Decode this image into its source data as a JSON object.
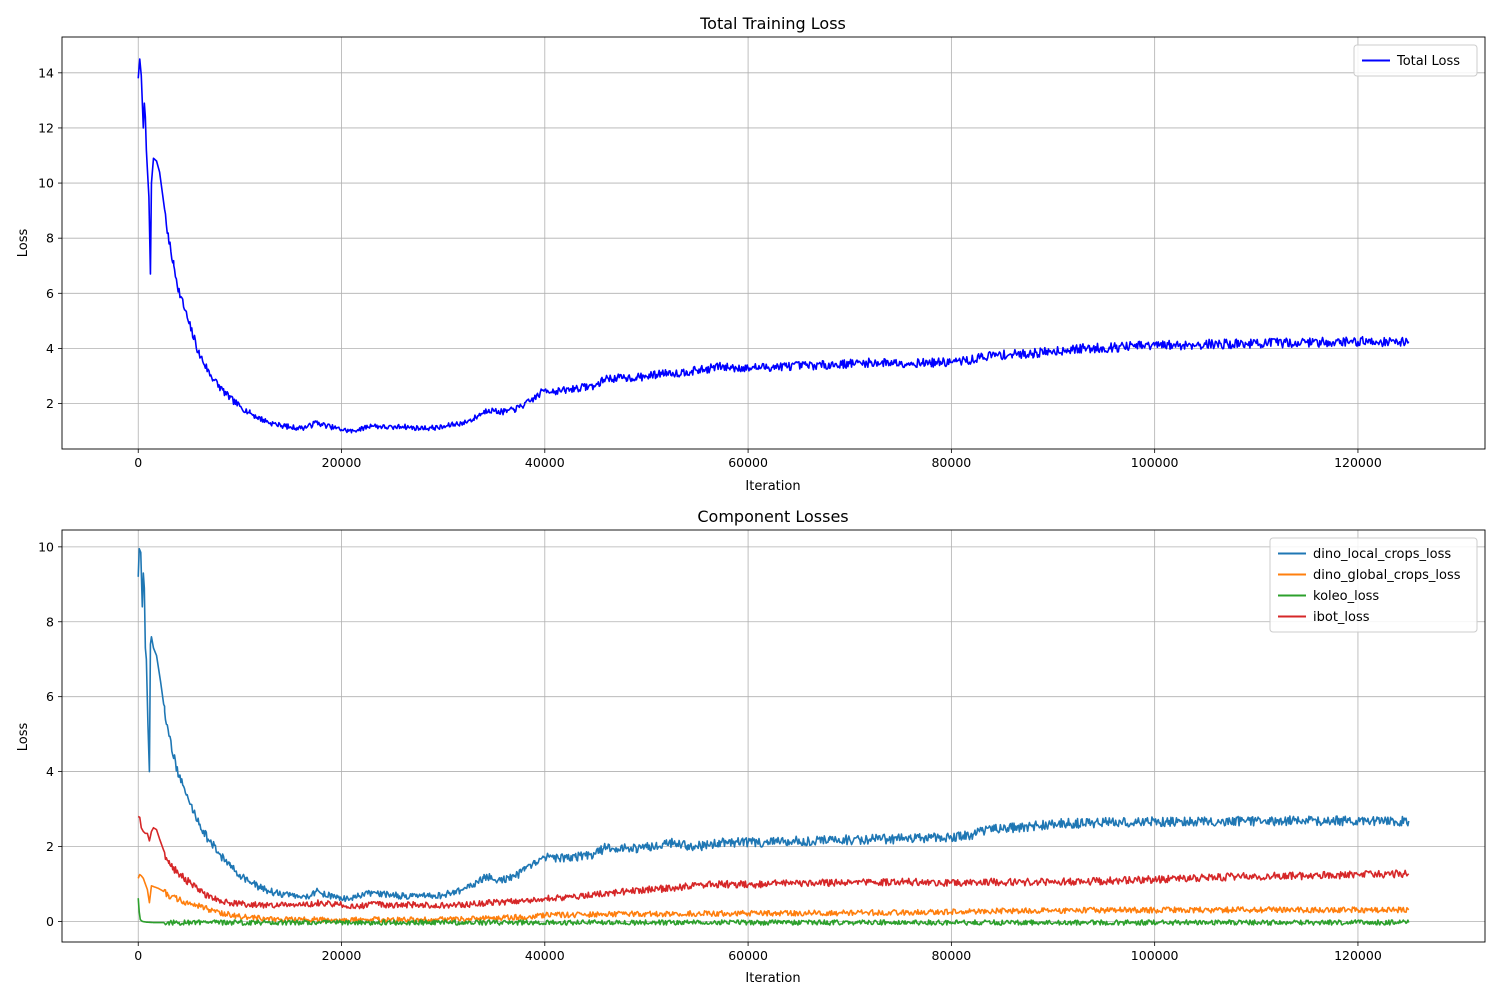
{
  "chart_data": [
    {
      "type": "line",
      "title": "Total Training Loss",
      "xlabel": "Iteration",
      "ylabel": "Loss",
      "xlim": [
        -7500,
        132500
      ],
      "ylim": [
        0.35,
        15.3
      ],
      "xticks": [
        0,
        20000,
        40000,
        60000,
        80000,
        100000,
        120000
      ],
      "xtick_labels": [
        "0",
        "20000",
        "40000",
        "60000",
        "80000",
        "100000",
        "120000"
      ],
      "yticks": [
        2,
        4,
        6,
        8,
        10,
        12,
        14
      ],
      "ytick_labels": [
        "2",
        "4",
        "6",
        "8",
        "10",
        "12",
        "14"
      ],
      "grid": true,
      "legend_position": "top-right",
      "noise_fraction": 0.012,
      "series": [
        {
          "name": "Total Loss",
          "color": "#0000ff",
          "x": [
            0,
            150,
            300,
            500,
            600,
            700,
            800,
            900,
            1050,
            1200,
            1300,
            1500,
            1800,
            2100,
            2500,
            3000,
            3500,
            4000,
            5000,
            6000,
            7000,
            8000,
            9000,
            10000,
            11000,
            12000,
            13000,
            14000,
            15000,
            16000,
            17000,
            17500,
            18000,
            19000,
            20000,
            21000,
            22000,
            23000,
            24000,
            25000,
            26000,
            27000,
            28000,
            29000,
            30000,
            31000,
            32000,
            33000,
            34000,
            34500,
            35000,
            36000,
            37000,
            38000,
            39000,
            40000,
            41000,
            42000,
            43000,
            44000,
            45000,
            46000,
            47000,
            48000,
            49000,
            50000,
            51000,
            52000,
            53000,
            54000,
            55000,
            56000,
            57000,
            58000,
            60000,
            62000,
            64000,
            66000,
            68000,
            70000,
            72000,
            74000,
            76000,
            78000,
            80000,
            82000,
            83000,
            84000,
            86000,
            88000,
            90000,
            92000,
            95000,
            98000,
            100000,
            105000,
            110000,
            115000,
            120000,
            125000
          ],
          "y": [
            13.8,
            14.5,
            13.9,
            12.0,
            12.9,
            12.4,
            11.2,
            10.5,
            9.5,
            6.7,
            10.0,
            10.9,
            10.8,
            10.4,
            9.3,
            7.9,
            7.0,
            6.1,
            4.9,
            3.8,
            3.1,
            2.6,
            2.2,
            1.9,
            1.65,
            1.45,
            1.3,
            1.2,
            1.15,
            1.1,
            1.2,
            1.33,
            1.25,
            1.15,
            1.05,
            1.0,
            1.1,
            1.2,
            1.15,
            1.13,
            1.17,
            1.12,
            1.1,
            1.12,
            1.14,
            1.25,
            1.3,
            1.45,
            1.7,
            1.78,
            1.72,
            1.7,
            1.78,
            1.95,
            2.2,
            2.5,
            2.45,
            2.48,
            2.55,
            2.6,
            2.65,
            2.9,
            2.92,
            2.93,
            2.95,
            2.98,
            3.05,
            3.15,
            3.1,
            3.15,
            3.2,
            3.25,
            3.35,
            3.3,
            3.3,
            3.32,
            3.36,
            3.38,
            3.4,
            3.45,
            3.48,
            3.48,
            3.47,
            3.48,
            3.5,
            3.58,
            3.7,
            3.75,
            3.78,
            3.82,
            3.9,
            3.98,
            4.02,
            4.08,
            4.1,
            4.15,
            4.18,
            4.22,
            4.25,
            4.25
          ]
        }
      ]
    },
    {
      "type": "line",
      "title": "Component Losses",
      "xlabel": "Iteration",
      "ylabel": "Loss",
      "xlim": [
        -7500,
        132500
      ],
      "ylim": [
        -0.55,
        10.45
      ],
      "xticks": [
        0,
        20000,
        40000,
        60000,
        80000,
        100000,
        120000
      ],
      "xtick_labels": [
        "0",
        "20000",
        "40000",
        "60000",
        "80000",
        "100000",
        "120000"
      ],
      "yticks": [
        0,
        2,
        4,
        6,
        8,
        10
      ],
      "ytick_labels": [
        "0",
        "2",
        "4",
        "6",
        "8",
        "10"
      ],
      "grid": true,
      "legend_position": "top-right",
      "noise_fraction": 0.012,
      "series": [
        {
          "name": "dino_local_crops_loss",
          "color": "#1f77b4",
          "x": [
            0,
            100,
            250,
            400,
            500,
            600,
            700,
            800,
            950,
            1100,
            1200,
            1300,
            1500,
            1800,
            2200,
            2600,
            3000,
            3500,
            4000,
            5000,
            6000,
            7000,
            8000,
            9000,
            10000,
            11000,
            12000,
            13000,
            14000,
            15000,
            16000,
            17000,
            17500,
            18000,
            19000,
            20000,
            21000,
            22000,
            23000,
            24000,
            25000,
            26000,
            27000,
            28000,
            29000,
            30000,
            31000,
            32000,
            33000,
            34000,
            34500,
            35000,
            36000,
            37000,
            38000,
            39000,
            40000,
            41000,
            42000,
            43000,
            44000,
            45000,
            46000,
            47000,
            48000,
            49000,
            50000,
            51000,
            52000,
            53000,
            54000,
            55000,
            56000,
            57000,
            58000,
            60000,
            62000,
            64000,
            66000,
            68000,
            70000,
            72000,
            74000,
            76000,
            78000,
            80000,
            82000,
            83000,
            84000,
            86000,
            88000,
            90000,
            92000,
            95000,
            98000,
            100000,
            105000,
            110000,
            115000,
            120000,
            125000
          ],
          "y": [
            9.2,
            9.95,
            9.85,
            8.4,
            9.3,
            8.9,
            7.3,
            7.0,
            5.3,
            4.0,
            7.4,
            7.6,
            7.3,
            7.1,
            6.4,
            5.6,
            5.0,
            4.4,
            3.9,
            3.2,
            2.6,
            2.15,
            1.8,
            1.5,
            1.25,
            1.05,
            0.9,
            0.8,
            0.73,
            0.7,
            0.65,
            0.7,
            0.8,
            0.75,
            0.68,
            0.6,
            0.62,
            0.7,
            0.75,
            0.72,
            0.7,
            0.68,
            0.67,
            0.67,
            0.68,
            0.7,
            0.78,
            0.85,
            1.0,
            1.15,
            1.18,
            1.1,
            1.12,
            1.2,
            1.35,
            1.55,
            1.72,
            1.68,
            1.7,
            1.72,
            1.75,
            1.8,
            1.98,
            1.96,
            1.94,
            1.95,
            1.97,
            2.05,
            2.1,
            2.08,
            2.02,
            2.0,
            2.05,
            2.1,
            2.12,
            2.1,
            2.12,
            2.14,
            2.15,
            2.17,
            2.18,
            2.2,
            2.2,
            2.2,
            2.22,
            2.25,
            2.32,
            2.42,
            2.45,
            2.5,
            2.55,
            2.6,
            2.62,
            2.64,
            2.65,
            2.66,
            2.68,
            2.68,
            2.7,
            2.68,
            2.68
          ]
        },
        {
          "name": "dino_global_crops_loss",
          "color": "#ff7f0e",
          "x": [
            0,
            150,
            300,
            500,
            700,
            900,
            1100,
            1300,
            1600,
            2000,
            2500,
            3000,
            4000,
            5000,
            6000,
            7000,
            8000,
            9000,
            10000,
            12000,
            14000,
            16000,
            18000,
            20000,
            22000,
            24000,
            26000,
            28000,
            30000,
            32000,
            34000,
            36000,
            38000,
            40000,
            44000,
            46000,
            50000,
            55000,
            60000,
            65000,
            70000,
            75000,
            80000,
            84000,
            90000,
            95000,
            100000,
            110000,
            120000,
            125000
          ],
          "y": [
            1.15,
            1.25,
            1.22,
            1.15,
            1.0,
            0.85,
            0.5,
            0.95,
            0.92,
            0.88,
            0.8,
            0.7,
            0.58,
            0.48,
            0.4,
            0.31,
            0.24,
            0.18,
            0.13,
            0.08,
            0.05,
            0.045,
            0.05,
            0.04,
            0.045,
            0.05,
            0.045,
            0.045,
            0.05,
            0.06,
            0.08,
            0.1,
            0.12,
            0.17,
            0.18,
            0.2,
            0.2,
            0.21,
            0.22,
            0.22,
            0.23,
            0.24,
            0.25,
            0.28,
            0.29,
            0.3,
            0.3,
            0.31,
            0.31,
            0.31
          ]
        },
        {
          "name": "koleo_loss",
          "color": "#2ca02c",
          "x": [
            0,
            100,
            200,
            400,
            800,
            1500,
            3000,
            10000,
            60000,
            125000
          ],
          "y": [
            0.62,
            0.25,
            0.05,
            0.0,
            -0.02,
            -0.03,
            -0.03,
            -0.03,
            -0.03,
            -0.03
          ]
        },
        {
          "name": "ibot_loss",
          "color": "#d62728",
          "x": [
            0,
            150,
            300,
            500,
            700,
            900,
            1100,
            1300,
            1500,
            1800,
            2100,
            2500,
            3000,
            3500,
            4000,
            5000,
            6000,
            7000,
            8000,
            9000,
            10000,
            12000,
            14000,
            16000,
            17000,
            18000,
            20000,
            22000,
            23000,
            25000,
            26000,
            28000,
            30000,
            32000,
            34000,
            36000,
            38000,
            40000,
            42000,
            44000,
            46000,
            48000,
            50000,
            52000,
            56000,
            60000,
            64000,
            68000,
            72000,
            76000,
            80000,
            84000,
            90000,
            95000,
            100000,
            105000,
            110000,
            115000,
            120000,
            125000
          ],
          "y": [
            2.8,
            2.78,
            2.5,
            2.4,
            2.35,
            2.35,
            2.15,
            2.4,
            2.5,
            2.45,
            2.2,
            1.9,
            1.55,
            1.4,
            1.25,
            1.05,
            0.82,
            0.65,
            0.57,
            0.5,
            0.47,
            0.44,
            0.43,
            0.42,
            0.47,
            0.5,
            0.44,
            0.41,
            0.47,
            0.43,
            0.44,
            0.45,
            0.42,
            0.45,
            0.48,
            0.52,
            0.55,
            0.62,
            0.62,
            0.68,
            0.75,
            0.8,
            0.85,
            0.88,
            1.0,
            0.98,
            1.02,
            1.03,
            1.05,
            1.05,
            1.03,
            1.05,
            1.05,
            1.08,
            1.12,
            1.18,
            1.2,
            1.22,
            1.25,
            1.27
          ]
        }
      ]
    }
  ]
}
